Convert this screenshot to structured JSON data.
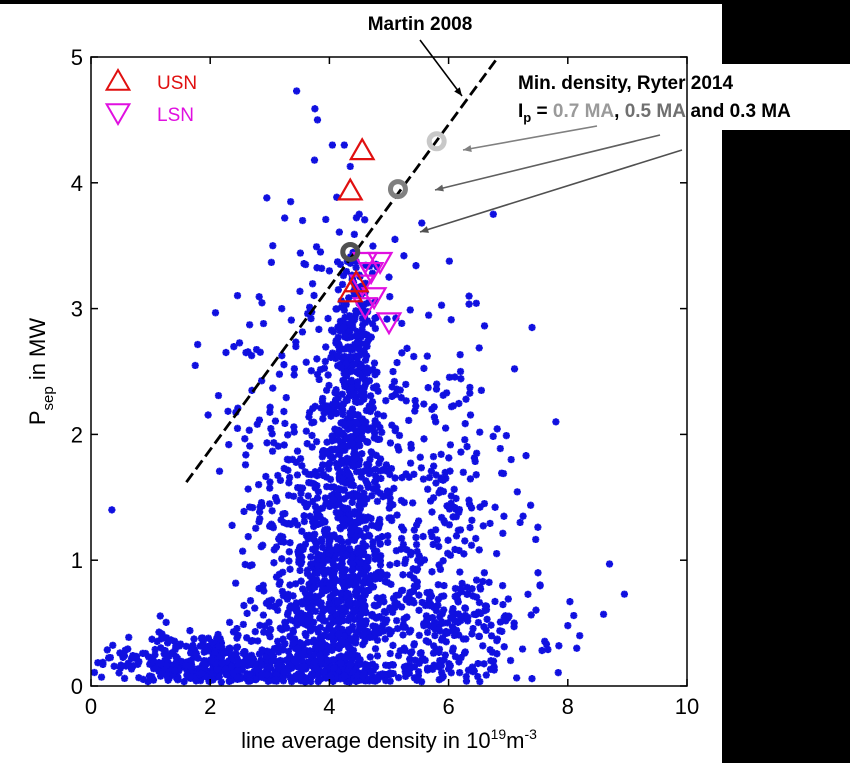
{
  "chart_data": {
    "type": "scatter",
    "title": "",
    "xlabel": "line average density in 10",
    "xlabel_sup_exp": "19",
    "xlabel_unit": "m",
    "xlabel_unit_sup": "-3",
    "ylabel": "P",
    "ylabel_sub": "sep",
    "ylabel_suffix": " in MW",
    "xlim": [
      0,
      10
    ],
    "ylim": [
      0,
      5
    ],
    "x_ticks": [
      0,
      2,
      4,
      6,
      8,
      10
    ],
    "y_ticks": [
      0,
      1,
      2,
      3,
      4,
      5
    ],
    "x_tick_labels": [
      "0",
      "2",
      "4",
      "6",
      "8",
      "10"
    ],
    "y_tick_labels": [
      "0",
      "1",
      "2",
      "3",
      "4",
      "5"
    ],
    "grid": false,
    "legend_position": "top-left",
    "colors": {
      "scatter": "#1010e0",
      "usn": "#e01010",
      "lsn": "#e010e0",
      "ryter_07": "#c8c8c8",
      "ryter_05": "#808080",
      "ryter_03": "#505050",
      "martin_line": "#000000",
      "annotation_gray": "#808080"
    },
    "series": [
      {
        "name": "USN",
        "marker": "triangle-up",
        "points": [
          [
            4.55,
            4.25
          ],
          [
            4.35,
            3.93
          ],
          [
            4.45,
            3.2
          ],
          [
            4.35,
            3.12
          ]
        ]
      },
      {
        "name": "LSN",
        "marker": "triangle-down",
        "points": [
          [
            4.6,
            3.38
          ],
          [
            4.85,
            3.38
          ],
          [
            4.7,
            3.3
          ],
          [
            4.55,
            3.2
          ],
          [
            4.75,
            3.1
          ],
          [
            4.6,
            3.02
          ],
          [
            5.0,
            2.9
          ]
        ]
      },
      {
        "name": "Min. density, Ryter 2014",
        "marker": "circle",
        "points": [
          [
            5.8,
            4.33
          ],
          [
            5.15,
            3.95
          ],
          [
            4.35,
            3.45
          ]
        ]
      }
    ],
    "martin_line": {
      "x": [
        1.6,
        6.8
      ],
      "y": [
        1.62,
        4.98
      ]
    },
    "scatter_cloud": {
      "explicit_points": [
        [
          0.0,
          0.13
        ],
        [
          0.35,
          1.4
        ],
        [
          3.45,
          4.73
        ],
        [
          3.8,
          4.5
        ],
        [
          4.25,
          4.3
        ],
        [
          4.35,
          4.13
        ],
        [
          4.05,
          4.3
        ],
        [
          3.75,
          4.18
        ],
        [
          2.95,
          3.88
        ],
        [
          3.35,
          3.85
        ],
        [
          4.5,
          3.75
        ],
        [
          3.25,
          3.72
        ],
        [
          3.55,
          3.7
        ],
        [
          3.05,
          3.5
        ],
        [
          6.75,
          3.75
        ],
        [
          5.55,
          3.68
        ],
        [
          5.1,
          3.55
        ],
        [
          5.25,
          3.42
        ],
        [
          5.0,
          3.25
        ],
        [
          7.4,
          2.85
        ],
        [
          7.8,
          2.1
        ],
        [
          2.6,
          2.65
        ],
        [
          3.2,
          3.0
        ],
        [
          2.7,
          2.35
        ],
        [
          6.2,
          2.5
        ],
        [
          6.55,
          2.35
        ],
        [
          5.8,
          2.4
        ],
        [
          5.95,
          2.05
        ],
        [
          7.05,
          1.8
        ],
        [
          7.2,
          1.3
        ],
        [
          8.7,
          0.97
        ],
        [
          8.95,
          0.73
        ],
        [
          8.6,
          0.57
        ],
        [
          8.1,
          0.56
        ],
        [
          8.2,
          0.4
        ],
        [
          8.15,
          0.3
        ],
        [
          7.85,
          0.32
        ],
        [
          8.0,
          0.48
        ],
        [
          7.1,
          0.5
        ],
        [
          7.5,
          0.9
        ],
        [
          6.6,
          0.9
        ],
        [
          7.25,
          1.35
        ],
        [
          3.85,
          3.45
        ],
        [
          4.15,
          3.15
        ],
        [
          4.0,
          3.3
        ],
        [
          3.6,
          3.35
        ],
        [
          5.7,
          0.65
        ],
        [
          6.2,
          0.55
        ]
      ],
      "clusters": [
        {
          "cx": 4.15,
          "cy": 0.55,
          "sx": 0.45,
          "sy": 0.5,
          "n": 480
        },
        {
          "cx": 4.25,
          "cy": 1.6,
          "sx": 0.32,
          "sy": 0.85,
          "n": 520
        },
        {
          "cx": 4.4,
          "cy": 2.6,
          "sx": 0.22,
          "sy": 0.45,
          "n": 180
        },
        {
          "cx": 2.3,
          "cy": 0.18,
          "sx": 0.85,
          "sy": 0.12,
          "n": 380
        },
        {
          "cx": 3.4,
          "cy": 0.9,
          "sx": 0.45,
          "sy": 0.7,
          "n": 260
        },
        {
          "cx": 5.4,
          "cy": 1.0,
          "sx": 0.6,
          "sy": 0.8,
          "n": 240
        },
        {
          "cx": 5.8,
          "cy": 0.45,
          "sx": 0.9,
          "sy": 0.25,
          "n": 200
        },
        {
          "cx": 6.3,
          "cy": 1.6,
          "sx": 0.55,
          "sy": 0.6,
          "n": 90
        },
        {
          "cx": 1.3,
          "cy": 0.15,
          "sx": 0.45,
          "sy": 0.1,
          "n": 90
        },
        {
          "cx": 3.0,
          "cy": 2.2,
          "sx": 0.5,
          "sy": 0.5,
          "n": 50
        },
        {
          "cx": 4.9,
          "cy": 2.1,
          "sx": 0.45,
          "sy": 0.6,
          "n": 60
        }
      ]
    },
    "annotations": {
      "martin": "Martin 2008",
      "ryter_title": "Min. density, Ryter 2014",
      "ip_label": "I",
      "ip_sub": "p",
      "ip_eq": " = ",
      "ip_val1": "0.7 MA",
      "ip_comma": ", ",
      "ip_val2": "0.5 MA",
      "ip_and": " and ",
      "ip_val3": "0.3 MA"
    },
    "legend": [
      {
        "label": "USN",
        "marker": "triangle-up"
      },
      {
        "label": "LSN",
        "marker": "triangle-down"
      }
    ]
  }
}
